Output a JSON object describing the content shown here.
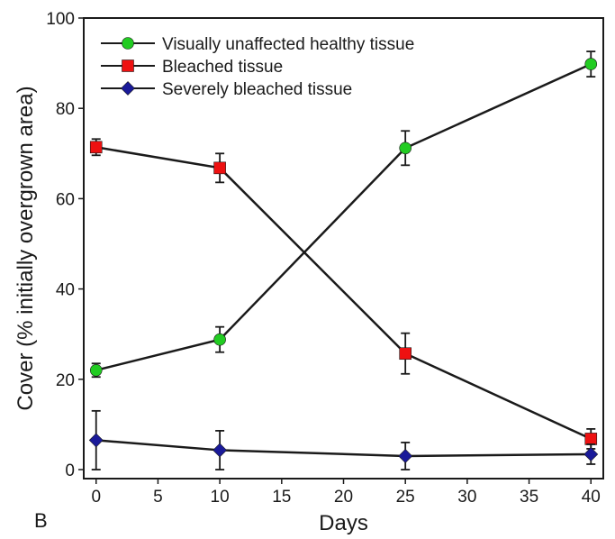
{
  "chart_data": {
    "type": "line",
    "panel_label": "B",
    "xlabel": "Days",
    "ylabel": "Cover (% initially overgrown area)",
    "xlim": [
      -1,
      41
    ],
    "ylim": [
      -2,
      100
    ],
    "xticks": [
      0,
      5,
      10,
      15,
      20,
      25,
      30,
      35,
      40
    ],
    "yticks": [
      0,
      20,
      40,
      60,
      80,
      100
    ],
    "grid": false,
    "legend_position": "top-left",
    "x": [
      0,
      10,
      25,
      40
    ],
    "series": [
      {
        "name": "Visually unaffected healthy tissue",
        "values": [
          22,
          28.8,
          71.2,
          89.8
        ],
        "errors": [
          1.5,
          2.8,
          3.8,
          2.8
        ],
        "marker": "circle",
        "color": "#22cc22"
      },
      {
        "name": "Bleached  tissue",
        "values": [
          71.4,
          66.8,
          25.7,
          6.8
        ],
        "errors": [
          1.8,
          3.2,
          4.5,
          2.2
        ],
        "marker": "square",
        "color": "#ee1111"
      },
      {
        "name": "Severely bleached tissue",
        "values": [
          6.5,
          4.3,
          3.0,
          3.4
        ],
        "errors": [
          6.5,
          4.3,
          3.0,
          2.2
        ],
        "marker": "diamond",
        "color": "#1a1a99"
      }
    ]
  }
}
